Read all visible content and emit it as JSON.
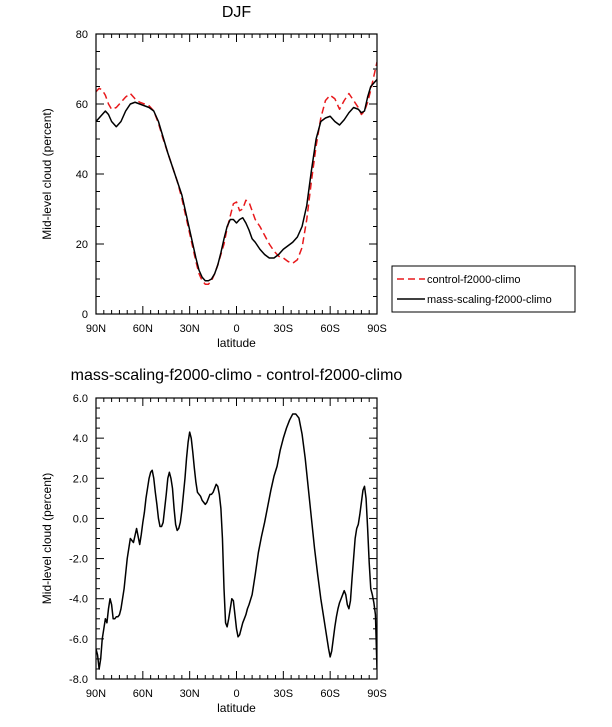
{
  "chart_data": [
    {
      "type": "line",
      "title": "DJF",
      "xlabel": "latitude",
      "ylabel": "Mid-level cloud (percent)",
      "xlim": [
        90,
        -90
      ],
      "ylim": [
        0,
        80
      ],
      "xticks": [
        90,
        60,
        30,
        0,
        -30,
        -60,
        -90
      ],
      "xtick_labels": [
        "90N",
        "60N",
        "30N",
        "0",
        "30S",
        "60S",
        "90S"
      ],
      "yticks": [
        0,
        20,
        40,
        60,
        80
      ],
      "ytick_labels": [
        "0",
        "20",
        "40",
        "60",
        "80"
      ],
      "legend_position": "right-outside",
      "series": [
        {
          "name": "control-f2000-climo",
          "color": "#e8191c",
          "dash": "dashed",
          "x": [
            90,
            88,
            86,
            84,
            82,
            80,
            77,
            74,
            71,
            68,
            65,
            62,
            59,
            56,
            53,
            50,
            47,
            44,
            41,
            38,
            35,
            32,
            29,
            26,
            24,
            22,
            20,
            18,
            16,
            14,
            12,
            10,
            8,
            6,
            4,
            2,
            0,
            -2,
            -4,
            -6,
            -8,
            -10,
            -12,
            -15,
            -18,
            -21,
            -24,
            -27,
            -30,
            -33,
            -36,
            -39,
            -42,
            -45,
            -48,
            -51,
            -54,
            -57,
            -60,
            -63,
            -66,
            -69,
            -72,
            -75,
            -78,
            -80,
            -82,
            -84,
            -86,
            -88,
            -90
          ],
          "y": [
            63.5,
            64.5,
            64,
            62.5,
            60,
            58.5,
            59,
            60.5,
            62,
            63,
            61.5,
            60.5,
            60,
            59.5,
            58,
            54.5,
            50,
            46,
            42,
            38,
            33,
            27,
            21,
            15,
            11.5,
            9.5,
            8.5,
            8.5,
            9.5,
            11.5,
            14,
            17,
            20,
            24.5,
            28,
            31.5,
            32,
            29.5,
            30,
            32.5,
            32,
            29.5,
            27,
            25,
            22.5,
            20,
            18,
            16.5,
            16,
            15,
            14.5,
            15.5,
            19,
            27,
            38,
            48,
            56,
            61,
            62.5,
            61.5,
            58.5,
            61,
            63,
            61,
            59,
            57,
            58,
            60.5,
            64,
            68,
            72
          ]
        },
        {
          "name": "mass-scaling-f2000-climo",
          "color": "#000000",
          "dash": "solid",
          "x": [
            90,
            88,
            86,
            84,
            82,
            80,
            77,
            74,
            71,
            68,
            65,
            62,
            59,
            56,
            53,
            50,
            47,
            44,
            41,
            38,
            35,
            32,
            29,
            26,
            24,
            22,
            20,
            18,
            16,
            14,
            12,
            10,
            8,
            6,
            4,
            2,
            0,
            -2,
            -4,
            -6,
            -8,
            -10,
            -12,
            -15,
            -18,
            -21,
            -24,
            -27,
            -30,
            -33,
            -36,
            -39,
            -42,
            -45,
            -48,
            -51,
            -54,
            -57,
            -60,
            -63,
            -66,
            -69,
            -72,
            -75,
            -78,
            -80,
            -82,
            -84,
            -86,
            -88,
            -90
          ],
          "y": [
            55,
            56,
            57,
            58,
            57,
            55,
            53.5,
            55,
            58,
            60,
            60.5,
            60,
            59.5,
            59,
            58,
            55,
            50.5,
            46,
            42,
            38,
            34,
            28,
            22,
            16,
            12.5,
            10.5,
            9.5,
            9.5,
            10,
            11.5,
            14,
            17.5,
            21.5,
            25,
            27,
            27,
            26,
            27,
            27.5,
            26,
            24,
            21.5,
            20.5,
            18.5,
            17,
            16,
            16,
            17,
            18.5,
            19.5,
            20.5,
            22,
            25,
            31,
            41,
            50,
            55,
            56,
            56.5,
            55,
            54,
            55.5,
            57.5,
            59,
            58.5,
            57.5,
            58,
            62,
            65,
            66,
            67
          ]
        }
      ]
    },
    {
      "type": "line",
      "title": "mass-scaling-f2000-climo - control-f2000-climo",
      "xlabel": "latitude",
      "ylabel": "Mid-level cloud (percent)",
      "xlim": [
        90,
        -90
      ],
      "ylim": [
        -8,
        6
      ],
      "xticks": [
        90,
        60,
        30,
        0,
        -30,
        -60,
        -90
      ],
      "xtick_labels": [
        "90N",
        "60N",
        "30N",
        "0",
        "30S",
        "60S",
        "90S"
      ],
      "yticks": [
        -8,
        -6,
        -4,
        -2,
        0,
        2,
        4,
        6
      ],
      "ytick_labels": [
        "-8.0",
        "-6.0",
        "-4.0",
        "-2.0",
        "0.0",
        "2.0",
        "4.0",
        "6.0"
      ],
      "series": [
        {
          "color": "#000000",
          "dash": "solid",
          "x": [
            90,
            89,
            88,
            87,
            86,
            85,
            84,
            83,
            82,
            81,
            80,
            79,
            78,
            77,
            76,
            75,
            74,
            72,
            70,
            68,
            66,
            64,
            62,
            61,
            60,
            59,
            58,
            57,
            56,
            55,
            54,
            53,
            52,
            51,
            50,
            49,
            48,
            47,
            46,
            45,
            44,
            43,
            42,
            41,
            40,
            39,
            38,
            37,
            36,
            35,
            34,
            33,
            32,
            31,
            30,
            29,
            28,
            27,
            26,
            25,
            24,
            23,
            22,
            21,
            20,
            19,
            18,
            17,
            16,
            15,
            14,
            13,
            12,
            11,
            10,
            9,
            8,
            7,
            6,
            5,
            4,
            3,
            2,
            1,
            0,
            -1,
            -2,
            -3,
            -4,
            -5,
            -6,
            -7,
            -8,
            -10,
            -12,
            -14,
            -16,
            -18,
            -20,
            -22,
            -24,
            -26,
            -28,
            -30,
            -32,
            -34,
            -36,
            -38,
            -40,
            -42,
            -44,
            -46,
            -48,
            -50,
            -52,
            -54,
            -56,
            -57,
            -58,
            -59,
            -60,
            -61,
            -62,
            -63,
            -64,
            -65,
            -66,
            -67,
            -68,
            -69,
            -70,
            -71,
            -72,
            -73,
            -74,
            -75,
            -76,
            -77,
            -78,
            -79,
            -80,
            -81,
            -82,
            -83,
            -84,
            -85,
            -86,
            -87,
            -88,
            -89,
            -90
          ],
          "y": [
            -6.5,
            -6.8,
            -7.5,
            -7.0,
            -6.0,
            -5.5,
            -5.0,
            -5.2,
            -4.5,
            -4.0,
            -4.3,
            -5.0,
            -5.0,
            -4.9,
            -4.9,
            -4.8,
            -4.5,
            -3.5,
            -2.0,
            -1.0,
            -1.2,
            -0.5,
            -1.3,
            -0.8,
            -0.2,
            0.3,
            1.0,
            1.5,
            2.0,
            2.3,
            2.4,
            2.0,
            1.3,
            0.7,
            0.0,
            -0.4,
            -0.4,
            -0.2,
            0.5,
            1.2,
            2.0,
            2.3,
            2.0,
            1.5,
            0.5,
            -0.3,
            -0.6,
            -0.5,
            -0.2,
            0.4,
            1.2,
            2.0,
            3.0,
            3.8,
            4.3,
            4.0,
            3.3,
            2.5,
            1.8,
            1.3,
            1.2,
            1.1,
            0.9,
            0.8,
            0.7,
            0.8,
            1.0,
            1.2,
            1.2,
            1.3,
            1.5,
            1.7,
            1.6,
            1.2,
            0.5,
            -1.0,
            -3.5,
            -5.2,
            -5.4,
            -5.0,
            -4.5,
            -4.0,
            -4.1,
            -4.8,
            -5.5,
            -5.9,
            -5.8,
            -5.5,
            -5.2,
            -5.0,
            -4.8,
            -4.5,
            -4.3,
            -3.8,
            -2.8,
            -1.7,
            -0.9,
            -0.2,
            0.6,
            1.4,
            2.1,
            2.6,
            3.4,
            4.0,
            4.5,
            4.9,
            5.2,
            5.2,
            5.0,
            4.2,
            3.0,
            1.5,
            0.0,
            -1.5,
            -2.8,
            -4.0,
            -5.0,
            -5.5,
            -6.0,
            -6.5,
            -6.9,
            -6.6,
            -6.0,
            -5.4,
            -4.9,
            -4.5,
            -4.2,
            -4.0,
            -3.8,
            -3.6,
            -3.8,
            -4.3,
            -4.5,
            -4.1,
            -3.0,
            -2.0,
            -1.0,
            -0.5,
            -0.3,
            0.2,
            0.8,
            1.4,
            1.6,
            1.0,
            -0.5,
            -2.2,
            -3.5,
            -3.8,
            -4.2,
            -4.8,
            -7.5
          ]
        }
      ]
    }
  ]
}
